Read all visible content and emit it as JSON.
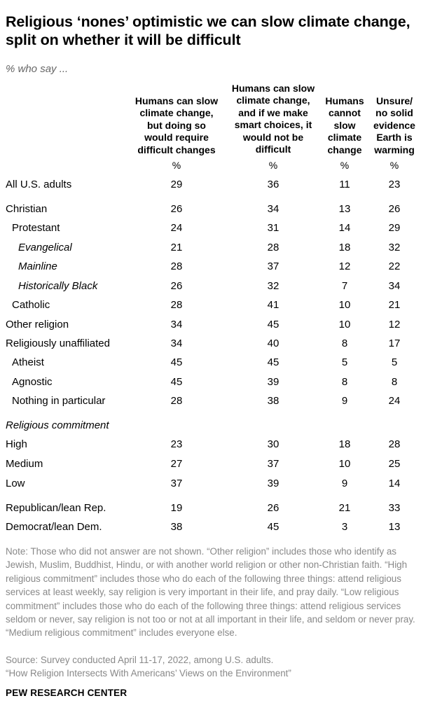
{
  "title": "Religious ‘nones’ optimistic we can slow climate change, split on whether it will be difficult",
  "subtitle": "% who say ...",
  "chart_data": {
    "type": "table",
    "columns": [
      [
        "Humans can slow",
        "climate change,",
        "but doing so",
        "would require",
        "difficult changes"
      ],
      [
        "Humans can slow",
        "climate change,",
        "and if we make",
        "smart choices, it",
        "would not be",
        "difficult"
      ],
      [
        "Humans",
        "cannot",
        "slow",
        "climate",
        "change"
      ],
      [
        "Unsure/",
        "no solid",
        "evidence",
        "Earth is",
        "warming"
      ]
    ],
    "unit": "%",
    "rows": [
      {
        "label": "All U.S. adults",
        "values": [
          29,
          36,
          11,
          23
        ]
      },
      {
        "label": "Christian",
        "values": [
          26,
          34,
          13,
          26
        ]
      },
      {
        "label": "Protestant",
        "values": [
          24,
          31,
          14,
          29
        ]
      },
      {
        "label": "Evangelical",
        "values": [
          21,
          28,
          18,
          32
        ]
      },
      {
        "label": "Mainline",
        "values": [
          28,
          37,
          12,
          22
        ]
      },
      {
        "label": "Historically Black",
        "values": [
          26,
          32,
          7,
          34
        ]
      },
      {
        "label": "Catholic",
        "values": [
          28,
          41,
          10,
          21
        ]
      },
      {
        "label": "Other religion",
        "values": [
          34,
          45,
          10,
          12
        ]
      },
      {
        "label": "Religiously unaffiliated",
        "values": [
          34,
          40,
          8,
          17
        ]
      },
      {
        "label": "Atheist",
        "values": [
          45,
          45,
          5,
          5
        ]
      },
      {
        "label": "Agnostic",
        "values": [
          45,
          39,
          8,
          8
        ]
      },
      {
        "label": "Nothing in particular",
        "values": [
          28,
          38,
          9,
          24
        ]
      },
      {
        "label": "High",
        "values": [
          23,
          30,
          18,
          28
        ]
      },
      {
        "label": "Medium",
        "values": [
          27,
          37,
          10,
          25
        ]
      },
      {
        "label": "Low",
        "values": [
          37,
          39,
          9,
          14
        ]
      },
      {
        "label": "Republican/lean Rep.",
        "values": [
          19,
          26,
          21,
          33
        ]
      },
      {
        "label": "Democrat/lean Dem.",
        "values": [
          38,
          45,
          3,
          13
        ]
      }
    ],
    "section_label": "Religious commitment"
  },
  "note": "Note: Those who did not answer are not shown. “Other religion” includes those who identify as Jewish, Muslim, Buddhist, Hindu, or with another world religion or other non-Christian faith. “High religious commitment” includes those who do each of the following three things: attend religious services at least weekly, say religion is very important in their life, and pray daily. “Low religious commitment” includes those who do each of the following three things: attend religious services seldom or never, say religion is not too or not at all important in their life, and seldom or never pray. “Medium religious commitment” includes everyone else.",
  "source": "Source: Survey conducted April 11-17, 2022, among U.S. adults.",
  "report": "“How Religion Intersects With Americans’ Views on the Environment”",
  "brand": "PEW RESEARCH CENTER"
}
